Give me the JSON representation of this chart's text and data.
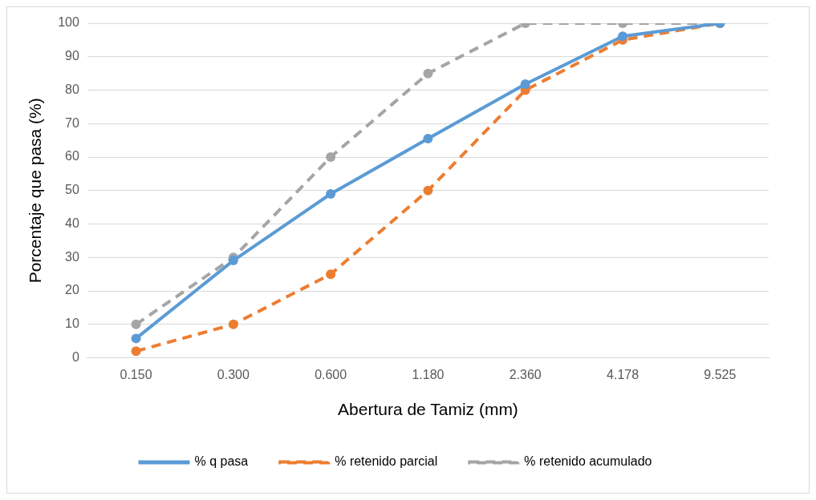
{
  "chart_data": {
    "type": "line",
    "xlabel": "Abertura de Tamiz (mm)",
    "ylabel": "Porcentaje que pasa (%)",
    "categories": [
      "0.150",
      "0.300",
      "0.600",
      "1.180",
      "2.360",
      "4.178",
      "9.525"
    ],
    "series": [
      {
        "name": "% q pasa",
        "color": "#5b9bd5",
        "line_style": "solid",
        "values": [
          5.8,
          29.1,
          49,
          65.5,
          81.8,
          96.1,
          100
        ]
      },
      {
        "name": "% retenido parcial",
        "color": "#ed7d31",
        "line_style": "dashed",
        "values": [
          2,
          10,
          25,
          50,
          80,
          95,
          100
        ]
      },
      {
        "name": "% retenido acumulado",
        "color": "#a5a5a5",
        "line_style": "dashed",
        "values": [
          10,
          30,
          60,
          85,
          100,
          100,
          100
        ]
      }
    ],
    "ylim": [
      0,
      100
    ],
    "yticks": [
      0,
      10,
      20,
      30,
      40,
      50,
      60,
      70,
      80,
      90,
      100
    ],
    "grid": "y",
    "legend": "bottom",
    "marker": "circle"
  }
}
